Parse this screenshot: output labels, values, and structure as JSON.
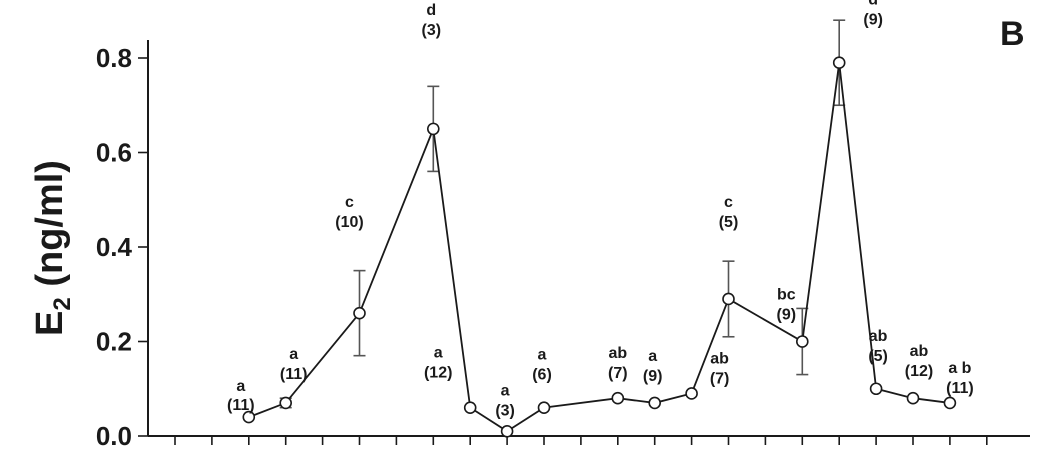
{
  "panel_label": "B",
  "chart_data": {
    "type": "line",
    "title": "",
    "xlabel": "",
    "ylabel": "E",
    "ylabel_sub": "2",
    "ylabel_unit": "(ng/ml)",
    "ylim": [
      0,
      0.82
    ],
    "yticks": [
      "0.0",
      "0.2",
      "0.4",
      "0.6",
      "0.8"
    ],
    "ytick_values": [
      0,
      0.2,
      0.4,
      0.6,
      0.8
    ],
    "x_tick_count": 23,
    "grid": false,
    "legend": "none",
    "series": [
      {
        "points": [
          {
            "x": 2,
            "y": 0.04,
            "err": 0,
            "letter": "a",
            "n": "(11)"
          },
          {
            "x": 3,
            "y": 0.07,
            "err": 0.01,
            "letter": "a",
            "n": "(11)"
          },
          {
            "x": 5,
            "y": 0.26,
            "err": 0.09,
            "letter": "c",
            "n": "(10)"
          },
          {
            "x": 7,
            "y": 0.65,
            "err": 0.09,
            "letter": "d",
            "n": "(3)"
          },
          {
            "x": 8,
            "y": 0.06,
            "err": 0,
            "letter": "a",
            "n": "(12)"
          },
          {
            "x": 9,
            "y": 0.01,
            "err": 0,
            "letter": "a",
            "n": "(3)"
          },
          {
            "x": 10,
            "y": 0.06,
            "err": 0,
            "letter": "a",
            "n": "(6)"
          },
          {
            "x": 12,
            "y": 0.08,
            "err": 0,
            "letter": "ab",
            "n": "(7)"
          },
          {
            "x": 13,
            "y": 0.07,
            "err": 0,
            "letter": "a",
            "n": "(9)"
          },
          {
            "x": 14,
            "y": 0.09,
            "err": 0,
            "letter": "ab",
            "n": "(7)"
          },
          {
            "x": 15,
            "y": 0.29,
            "err": 0.08,
            "letter": "c",
            "n": "(5)"
          },
          {
            "x": 17,
            "y": 0.2,
            "err": 0.07,
            "letter": "bc",
            "n": "(9)"
          },
          {
            "x": 18,
            "y": 0.79,
            "err": 0.09,
            "letter": "d",
            "n": "(9)"
          },
          {
            "x": 19,
            "y": 0.1,
            "err": 0,
            "letter": "ab",
            "n": "(5)"
          },
          {
            "x": 20,
            "y": 0.08,
            "err": 0,
            "letter": "ab",
            "n": "(12)"
          },
          {
            "x": 21,
            "y": 0.07,
            "err": 0,
            "letter": "a b",
            "n": "(11)"
          }
        ]
      }
    ]
  }
}
